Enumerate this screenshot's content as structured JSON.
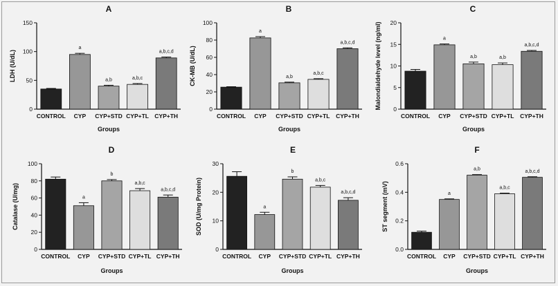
{
  "chart_data": [
    {
      "type": "bar",
      "panel": "A",
      "categories": [
        "CONTROL",
        "CYP",
        "CYP+STD",
        "CYP+TL",
        "CYP+TH"
      ],
      "values": [
        35,
        95,
        40,
        43,
        89
      ],
      "errors": [
        1,
        2,
        1.5,
        1.5,
        1.5
      ],
      "annotations": [
        "",
        "a",
        "a,b",
        "a,b,c",
        "a,b,c,d"
      ],
      "xlabel": "Groups",
      "ylabel": "LDH (U/dL)",
      "ylim": [
        0,
        150
      ],
      "yticks": [
        0,
        50,
        100,
        150
      ],
      "colors": [
        "#222222",
        "#979797",
        "#a5a5a5",
        "#dedede",
        "#7a7a7a"
      ]
    },
    {
      "type": "bar",
      "panel": "B",
      "categories": [
        "CONTROL",
        "CYP",
        "CYP+STD",
        "CYP+TL",
        "CYP+TH"
      ],
      "values": [
        25.5,
        82.5,
        30.5,
        34.5,
        70
      ],
      "errors": [
        0.5,
        1.5,
        0.8,
        0.8,
        1
      ],
      "annotations": [
        "",
        "a",
        "a,b",
        "a,b,c",
        "a,b,c,d"
      ],
      "xlabel": "Groups",
      "ylabel": "CK-MB (U/dL)",
      "ylim": [
        0,
        100
      ],
      "yticks": [
        0,
        20,
        40,
        60,
        80,
        100
      ],
      "colors": [
        "#222222",
        "#979797",
        "#a5a5a5",
        "#dedede",
        "#7a7a7a"
      ]
    },
    {
      "type": "bar",
      "panel": "C",
      "categories": [
        "CONTROL",
        "CYP",
        "CYP+STD",
        "CYP+TL",
        "CYP+TH"
      ],
      "values": [
        8.8,
        14.9,
        10.5,
        10.3,
        13.4
      ],
      "errors": [
        0.4,
        0.2,
        0.4,
        0.4,
        0.2
      ],
      "annotations": [
        "",
        "a",
        "a,b",
        "a,b",
        "a,b,c,d"
      ],
      "xlabel": "Groups",
      "ylabel": "Malondialdehyde level (ng/ml)",
      "ylim": [
        0,
        20
      ],
      "yticks": [
        0,
        5,
        10,
        15,
        20
      ],
      "colors": [
        "#222222",
        "#979797",
        "#a5a5a5",
        "#dedede",
        "#7a7a7a"
      ]
    },
    {
      "type": "bar",
      "panel": "D",
      "categories": [
        "CONTROL",
        "CYP",
        "CYP+STD",
        "CYP+TL",
        "CYP+TH"
      ],
      "values": [
        82,
        51,
        80,
        68.5,
        61
      ],
      "errors": [
        2.5,
        3.5,
        1.5,
        2.5,
        2.5
      ],
      "annotations": [
        "",
        "a",
        "b",
        "a,b,c",
        "a,b,c,d"
      ],
      "xlabel": "Groups",
      "ylabel": "Catalase (U/mg)",
      "ylim": [
        0,
        100
      ],
      "yticks": [
        0,
        20,
        40,
        60,
        80,
        100
      ],
      "colors": [
        "#222222",
        "#979797",
        "#a5a5a5",
        "#dedede",
        "#7a7a7a"
      ]
    },
    {
      "type": "bar",
      "panel": "E",
      "categories": [
        "CONTROL",
        "CYP",
        "CYP+STD",
        "CYP+TL",
        "CYP+TH"
      ],
      "values": [
        25.6,
        12.2,
        24.6,
        21.8,
        17.2
      ],
      "errors": [
        1.6,
        0.8,
        0.8,
        0.6,
        0.9
      ],
      "annotations": [
        "",
        "a",
        "b",
        "a,b,c",
        "a,b,c,d"
      ],
      "xlabel": "Groups",
      "ylabel": "SOD (U/mg Protein)",
      "ylim": [
        0,
        30
      ],
      "yticks": [
        0,
        10,
        20,
        30
      ],
      "colors": [
        "#222222",
        "#979797",
        "#a5a5a5",
        "#dedede",
        "#7a7a7a"
      ]
    },
    {
      "type": "bar",
      "panel": "F",
      "categories": [
        "CONTROL",
        "CYP",
        "CYP+STD",
        "CYP+TL",
        "CYP+TH"
      ],
      "values": [
        0.12,
        0.35,
        0.52,
        0.39,
        0.505
      ],
      "errors": [
        0.008,
        0.004,
        0.004,
        0.004,
        0.004
      ],
      "annotations": [
        "",
        "a",
        "a,b",
        "a,b,c",
        "a,b,c,d"
      ],
      "xlabel": "Groups",
      "ylabel": "ST segment (mV)",
      "ylim": [
        0,
        0.6
      ],
      "yticks": [
        0.0,
        0.2,
        0.4,
        0.6
      ],
      "colors": [
        "#222222",
        "#979797",
        "#a5a5a5",
        "#dedede",
        "#7a7a7a"
      ]
    }
  ]
}
